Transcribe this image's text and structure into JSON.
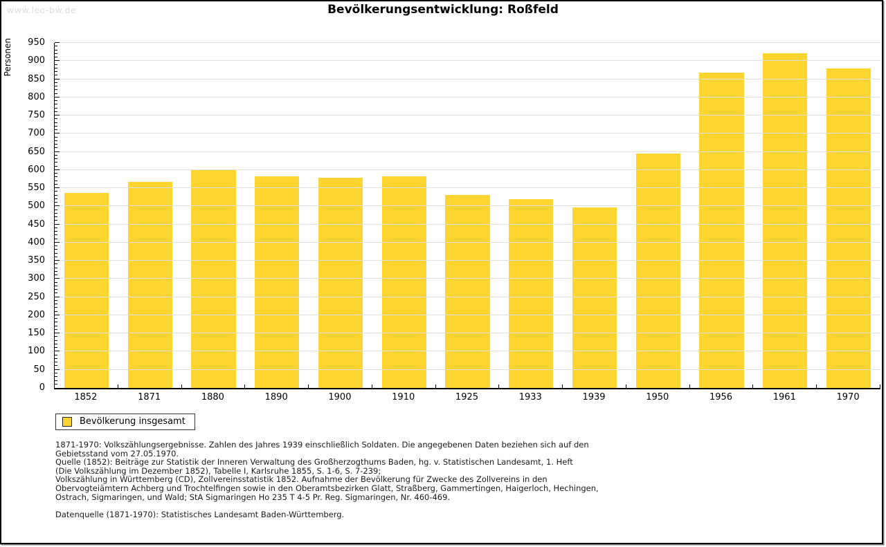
{
  "page": {
    "watermark": "www.leo-bw.de",
    "title": "Bevölkerungsentwicklung: Roßfeld"
  },
  "chart_data": {
    "type": "bar",
    "title": "Bevölkerungsentwicklung: Roßfeld",
    "xlabel": "",
    "ylabel": "Personen",
    "categories": [
      "1852",
      "1871",
      "1880",
      "1890",
      "1900",
      "1910",
      "1925",
      "1933",
      "1939",
      "1950",
      "1956",
      "1961",
      "1970"
    ],
    "values": [
      537,
      568,
      600,
      583,
      578,
      583,
      531,
      520,
      497,
      645,
      868,
      921,
      879
    ],
    "series_name": "Bevölkerung insgesamt",
    "ylim": [
      0,
      950
    ],
    "ytick_step": 50,
    "minor_tick_step": 10,
    "grid": true,
    "grid_color": "#e0e0e0",
    "bar_color": "#fcd530",
    "legend_position": "bottom-left"
  },
  "legend": {
    "label": "Bevölkerung insgesamt",
    "swatch_color": "#fcd530"
  },
  "footer": {
    "lines": [
      "1871-1970: Volkszählungsergebnisse. Zahlen des Jahres 1939 einschließlich Soldaten. Die angegebenen Daten beziehen sich auf den",
      "Gebietsstand vom 27.05.1970.",
      "Quelle (1852): Beiträge zur Statistik der Inneren Verwaltung des Großherzogthums Baden, hg. v. Statistischen Landesamt, 1. Heft",
      "(Die Volkszählung im Dezember 1852), Tabelle I, Karlsruhe 1855, S. 1-6, S. 7-239;",
      "Volkszählung in Württemberg (CD), Zollvereinsstatistik 1852. Aufnahme der Bevölkerung für Zwecke des Zollvereins in den",
      "Obervogteiämtern Achberg und Trochtelfingen sowie in den Oberamtsbezirken Glatt, Straßberg, Gammertingen, Haigerloch, Hechingen,",
      "Ostrach, Sigmaringen, und Wald; StA Sigmaringen Ho 235 T 4-5 Pr. Reg. Sigmaringen, Nr. 460-469."
    ],
    "datasource": "Datenquelle (1871-1970): Statistisches Landesamt Baden-Württemberg."
  }
}
